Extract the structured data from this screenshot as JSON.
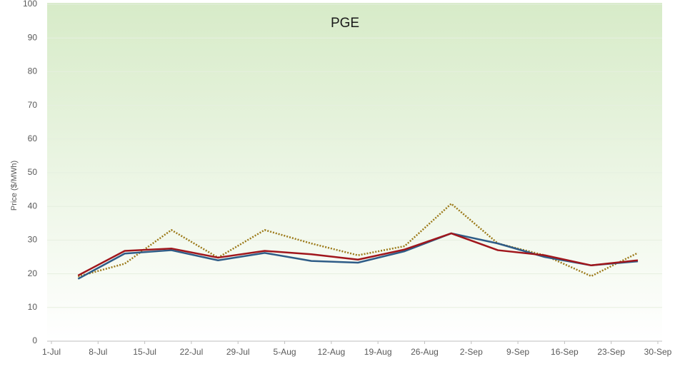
{
  "chart_data": {
    "type": "line",
    "title": "PGE",
    "y_label": "Price ($/MWh)",
    "x": [
      4,
      11,
      18,
      25,
      32,
      39,
      46,
      53,
      60,
      67,
      74,
      81,
      88
    ],
    "xlim": [
      0,
      91
    ],
    "xticks": [
      {
        "value": 0,
        "label": "1-Jul"
      },
      {
        "value": 7,
        "label": "8-Jul"
      },
      {
        "value": 14,
        "label": "15-Jul"
      },
      {
        "value": 21,
        "label": "22-Jul"
      },
      {
        "value": 28,
        "label": "29-Jul"
      },
      {
        "value": 35,
        "label": "5-Aug"
      },
      {
        "value": 42,
        "label": "12-Aug"
      },
      {
        "value": 49,
        "label": "19-Aug"
      },
      {
        "value": 56,
        "label": "26-Aug"
      },
      {
        "value": 63,
        "label": "2-Sep"
      },
      {
        "value": 70,
        "label": "9-Sep"
      },
      {
        "value": 77,
        "label": "16-Sep"
      },
      {
        "value": 84,
        "label": "23-Sep"
      },
      {
        "value": 91,
        "label": "30-Sep"
      }
    ],
    "ylim": [
      0,
      100
    ],
    "yticks": [
      0,
      10,
      20,
      30,
      40,
      50,
      60,
      70,
      80,
      90,
      100
    ],
    "grid": true,
    "series": [
      {
        "color": "#9c7a1a",
        "line_style": "dotted",
        "values": [
          19.2,
          23,
          33,
          24.8,
          33,
          29,
          25.5,
          28.2,
          40.8,
          29,
          25.5,
          19.3,
          26.2
        ]
      },
      {
        "color": "#2e5c87",
        "line_style": "solid",
        "values": [
          18.5,
          26,
          27,
          24,
          26.2,
          23.8,
          23.3,
          26.7,
          32,
          29,
          25,
          22.5,
          23.7
        ]
      },
      {
        "color": "#a0161c",
        "line_style": "solid",
        "values": [
          19.5,
          26.8,
          27.5,
          24.8,
          26.8,
          25.8,
          24.2,
          27.2,
          32,
          27,
          25.5,
          22.5,
          24
        ]
      }
    ]
  }
}
